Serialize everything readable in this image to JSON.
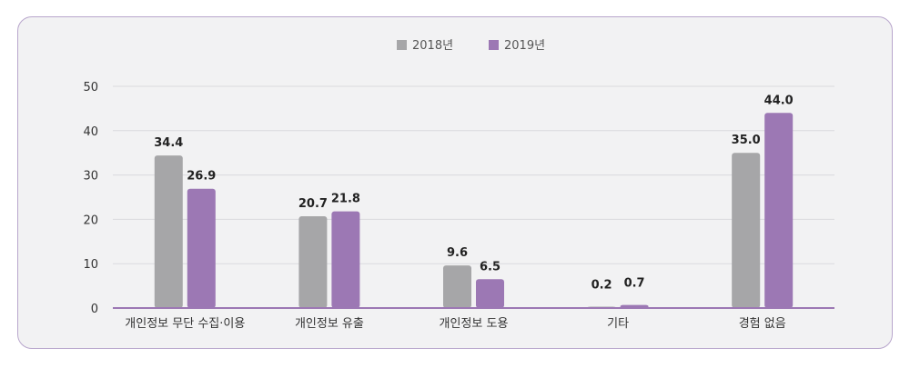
{
  "chart_data": {
    "type": "bar",
    "categories": [
      "개인정보 무단 수집·이용",
      "개인정보 유출",
      "개인정보 도용",
      "기타",
      "경험 없음"
    ],
    "series": [
      {
        "name": "2018년",
        "color": "#a6a6a8",
        "values": [
          34.4,
          20.7,
          9.6,
          0.2,
          35.0
        ],
        "labels": [
          "34.4",
          "20.7",
          "9.6",
          "0.2",
          "35.0"
        ]
      },
      {
        "name": "2019년",
        "color": "#9c78b4",
        "values": [
          26.9,
          21.8,
          6.5,
          0.7,
          44.0
        ],
        "labels": [
          "26.9",
          "21.8",
          "6.5",
          "0.7",
          "44.0"
        ]
      }
    ],
    "ylim": [
      0,
      50
    ],
    "yticks": [
      "0",
      "10",
      "20",
      "30",
      "40",
      "50"
    ],
    "grid": true,
    "legend_position": "top-center",
    "axis_color": "#9c78b4"
  }
}
